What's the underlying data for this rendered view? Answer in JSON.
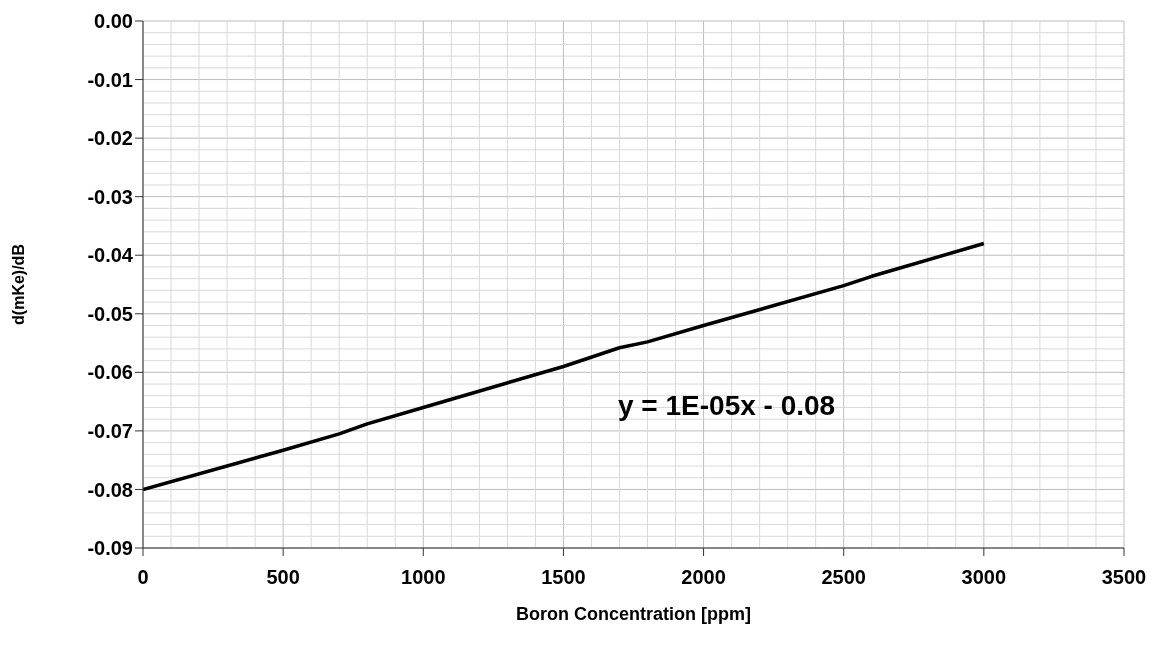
{
  "chart_data": {
    "type": "line",
    "xlabel": "Boron Concentration [ppm]",
    "ylabel": "d(mKe)/dB",
    "x": [
      0,
      500,
      700,
      800,
      1000,
      1500,
      1700,
      1800,
      2000,
      2500,
      2600,
      3000
    ],
    "series": [
      {
        "color": "#000000",
        "values": [
          -0.08,
          -0.0733,
          -0.0705,
          -0.0688,
          -0.066,
          -0.059,
          -0.0558,
          -0.0548,
          -0.052,
          -0.0452,
          -0.0436,
          -0.038
        ]
      }
    ],
    "xlim": [
      0,
      3500
    ],
    "xticks": [
      0,
      500,
      1000,
      1500,
      2000,
      2500,
      3000,
      3500
    ],
    "ylim": [
      -0.09,
      0
    ],
    "yticks": [
      {
        "value": -0.09,
        "label": "-0.09"
      },
      {
        "value": -0.08,
        "label": "-0.08"
      },
      {
        "value": -0.07,
        "label": "-0.07"
      },
      {
        "value": -0.06,
        "label": "-0.06"
      },
      {
        "value": -0.05,
        "label": "-0.05"
      },
      {
        "value": -0.04,
        "label": "-0.04"
      },
      {
        "value": -0.03,
        "label": "-0.03"
      },
      {
        "value": -0.02,
        "label": "-0.02"
      },
      {
        "value": -0.01,
        "label": "-0.01"
      },
      {
        "value": 0,
        "label": "0.00"
      }
    ],
    "grid": true,
    "legend": false,
    "marker": "none",
    "line_style": "solid",
    "annotations": [
      "y = 1E-05x - 0.08"
    ]
  }
}
